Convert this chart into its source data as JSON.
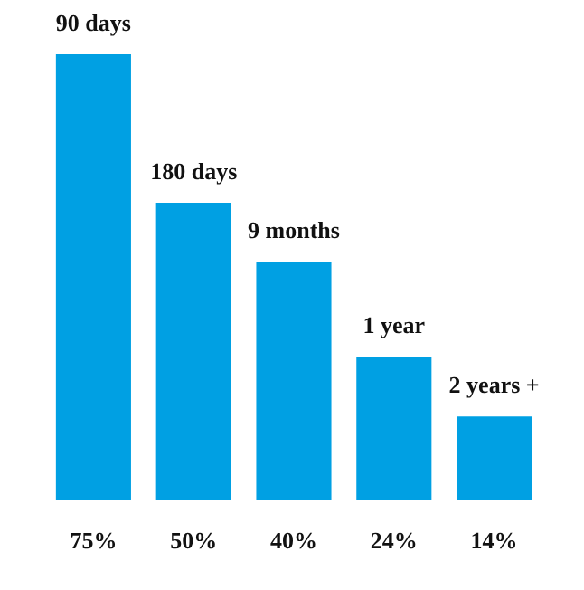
{
  "chart_data": {
    "type": "bar",
    "categories": [
      "90 days",
      "180 days",
      "9 months",
      "1 year",
      "2 years +"
    ],
    "values": [
      75,
      50,
      40,
      24,
      14
    ],
    "value_labels": [
      "75%",
      "50%",
      "40%",
      "24%",
      "14%"
    ],
    "color": "#00a0e3",
    "grid": false,
    "legend": false
  }
}
